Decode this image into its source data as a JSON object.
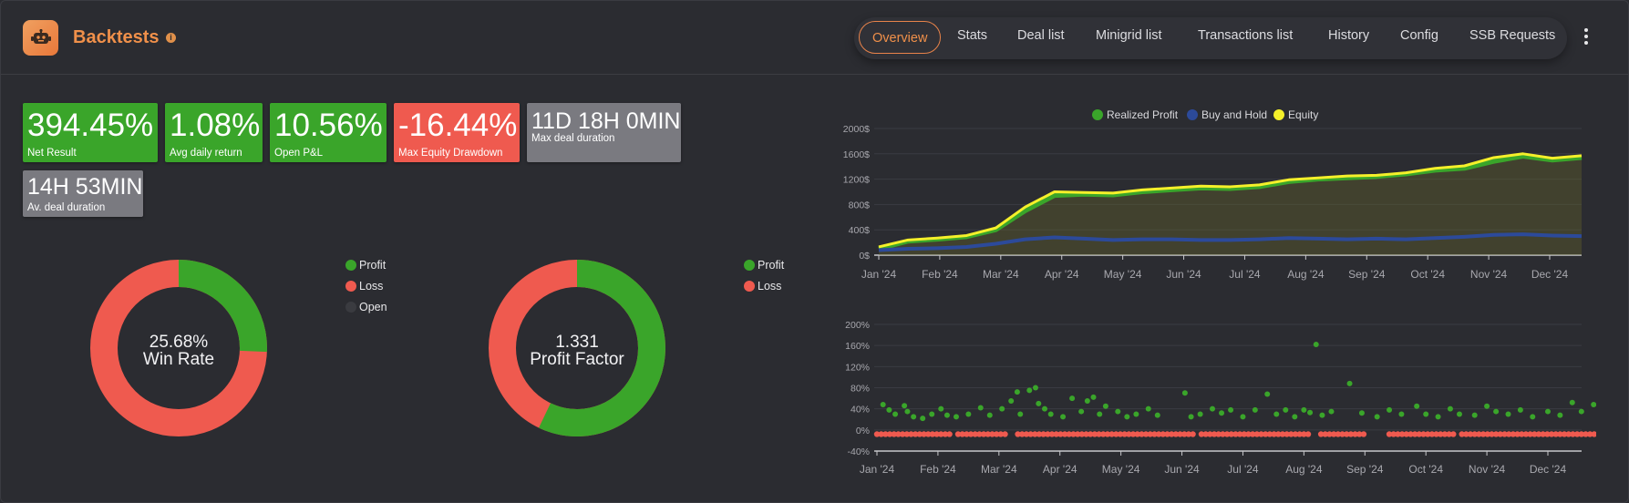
{
  "header": {
    "title": "Backtests",
    "tabs": [
      {
        "label": "Overview",
        "active": true
      },
      {
        "label": "Stats"
      },
      {
        "label": "Deal list"
      },
      {
        "label": "Minigrid list"
      },
      {
        "label": "Transactions list"
      },
      {
        "label": "History"
      },
      {
        "label": "Config"
      },
      {
        "label": "SSB Requests"
      }
    ]
  },
  "stats": [
    {
      "value": "394.45%",
      "label": "Net Result",
      "color": "#3aa52a"
    },
    {
      "value": "1.08%",
      "label": "Avg daily return",
      "color": "#3aa52a"
    },
    {
      "value": "10.56%",
      "label": "Open P&L",
      "color": "#3aa52a"
    },
    {
      "value": "-16.44%",
      "label": "Max Equity Drawdown",
      "color": "#ef5a4f"
    },
    {
      "value": "11D 18H 0MIN",
      "label": "Max deal duration",
      "color": "#7a7a80"
    },
    {
      "value": "14H 53MIN",
      "label": "Av. deal duration",
      "color": "#7a7a80"
    }
  ],
  "win_rate": {
    "value": "25.68%",
    "label": "Win Rate",
    "legend": [
      "Profit",
      "Loss",
      "Open"
    ],
    "colors": {
      "profit": "#3aa52a",
      "loss": "#ef5a4f",
      "open": "#2f3035"
    }
  },
  "profit_factor": {
    "value": "1.331",
    "label": "Profit Factor",
    "legend": [
      "Profit",
      "Loss"
    ],
    "colors": {
      "profit": "#3aa52a",
      "loss": "#ef5a4f"
    }
  },
  "chart_data": [
    {
      "type": "pie",
      "categories": [
        "Profit",
        "Loss",
        "Open"
      ],
      "values": [
        25.68,
        74.32,
        0
      ],
      "center_text": [
        "25.68%",
        "Win Rate"
      ]
    },
    {
      "type": "pie",
      "categories": [
        "Profit",
        "Loss"
      ],
      "values": [
        57.1,
        42.9
      ],
      "center_text": [
        "1.331",
        "Profit Factor"
      ]
    },
    {
      "type": "area",
      "legend_position": "top",
      "y_tick_labels": [
        "0$",
        "400$",
        "800$",
        "1200$",
        "1600$",
        "2000$"
      ],
      "ylim": [
        0,
        2000
      ],
      "x_tick_labels": [
        "Jan '24",
        "Feb '24",
        "Mar '24",
        "Apr '24",
        "May '24",
        "Jun '24",
        "Jul '24",
        "Aug '24",
        "Sep '24",
        "Oct '24",
        "Nov '24",
        "Dec '24"
      ],
      "x": [
        "Jan '24",
        "mid Jan",
        "Feb '24",
        "mid Feb",
        "Mar '24",
        "mid Mar",
        "Apr '24",
        "mid Apr",
        "May '24",
        "mid May",
        "Jun '24",
        "mid Jun",
        "Jul '24",
        "mid Jul",
        "Aug '24",
        "mid Aug",
        "Sep '24",
        "mid Sep",
        "Oct '24",
        "mid Oct",
        "Nov '24",
        "mid Nov",
        "Dec '24",
        "mid Dec",
        "end"
      ],
      "series": [
        {
          "name": "Realized Profit",
          "color": "#3aa52a",
          "values": [
            100,
            220,
            250,
            290,
            400,
            700,
            940,
            960,
            950,
            1000,
            1030,
            1060,
            1050,
            1080,
            1160,
            1200,
            1220,
            1240,
            1280,
            1340,
            1370,
            1480,
            1560,
            1500,
            1540
          ]
        },
        {
          "name": "Buy and Hold",
          "color": "#2c4a9a",
          "values": [
            80,
            100,
            110,
            130,
            180,
            250,
            280,
            260,
            240,
            250,
            250,
            240,
            240,
            250,
            270,
            260,
            250,
            260,
            250,
            270,
            290,
            320,
            330,
            310,
            300
          ]
        },
        {
          "name": "Equity",
          "color": "#f5f02a",
          "values": [
            130,
            240,
            270,
            310,
            430,
            760,
            1000,
            990,
            980,
            1030,
            1060,
            1090,
            1080,
            1110,
            1190,
            1220,
            1250,
            1260,
            1300,
            1370,
            1410,
            1540,
            1600,
            1530,
            1570
          ]
        }
      ]
    },
    {
      "type": "scatter",
      "y_tick_labels": [
        "-40%",
        "0%",
        "40%",
        "80%",
        "120%",
        "160%",
        "200%"
      ],
      "ylim": [
        -40,
        200
      ],
      "x_tick_labels": [
        "Jan '24",
        "Feb '24",
        "Mar '24",
        "Apr '24",
        "May '24",
        "Jun '24",
        "Jul '24",
        "Aug '24",
        "Sep '24",
        "Oct '24",
        "Nov '24",
        "Dec '24"
      ],
      "series": [
        {
          "name": "Profit",
          "color": "#3aa52a",
          "points": [
            [
              0.1,
              48
            ],
            [
              0.2,
              38
            ],
            [
              0.3,
              30
            ],
            [
              0.45,
              46
            ],
            [
              0.5,
              35
            ],
            [
              0.6,
              25
            ],
            [
              0.75,
              22
            ],
            [
              0.9,
              30
            ],
            [
              1.05,
              40
            ],
            [
              1.15,
              28
            ],
            [
              1.3,
              25
            ],
            [
              1.5,
              30
            ],
            [
              1.7,
              42
            ],
            [
              1.85,
              28
            ],
            [
              2.05,
              40
            ],
            [
              2.2,
              55
            ],
            [
              2.3,
              72
            ],
            [
              2.35,
              30
            ],
            [
              2.5,
              75
            ],
            [
              2.6,
              80
            ],
            [
              2.65,
              50
            ],
            [
              2.75,
              40
            ],
            [
              2.85,
              30
            ],
            [
              3.05,
              25
            ],
            [
              3.2,
              60
            ],
            [
              3.35,
              35
            ],
            [
              3.45,
              55
            ],
            [
              3.55,
              62
            ],
            [
              3.65,
              30
            ],
            [
              3.75,
              45
            ],
            [
              3.95,
              35
            ],
            [
              4.1,
              25
            ],
            [
              4.25,
              30
            ],
            [
              4.45,
              40
            ],
            [
              4.6,
              28
            ],
            [
              5.05,
              70
            ],
            [
              5.15,
              25
            ],
            [
              5.3,
              30
            ],
            [
              5.5,
              40
            ],
            [
              5.65,
              32
            ],
            [
              5.8,
              38
            ],
            [
              6.0,
              25
            ],
            [
              6.2,
              38
            ],
            [
              6.4,
              68
            ],
            [
              6.55,
              30
            ],
            [
              6.7,
              38
            ],
            [
              6.85,
              25
            ],
            [
              7.0,
              38
            ],
            [
              7.1,
              33
            ],
            [
              7.2,
              162
            ],
            [
              7.3,
              28
            ],
            [
              7.45,
              35
            ],
            [
              7.75,
              88
            ],
            [
              7.95,
              32
            ],
            [
              8.2,
              25
            ],
            [
              8.4,
              38
            ],
            [
              8.6,
              30
            ],
            [
              8.85,
              45
            ],
            [
              9.0,
              30
            ],
            [
              9.2,
              25
            ],
            [
              9.4,
              40
            ],
            [
              9.55,
              30
            ],
            [
              9.8,
              28
            ],
            [
              10.0,
              45
            ],
            [
              10.15,
              35
            ],
            [
              10.35,
              30
            ],
            [
              10.55,
              38
            ],
            [
              10.75,
              25
            ],
            [
              11.0,
              35
            ],
            [
              11.2,
              28
            ],
            [
              11.4,
              52
            ],
            [
              11.55,
              35
            ],
            [
              11.75,
              48
            ],
            [
              11.9,
              25
            ]
          ]
        },
        {
          "name": "Loss",
          "color": "#ef5a4f",
          "points": []
        }
      ]
    }
  ]
}
